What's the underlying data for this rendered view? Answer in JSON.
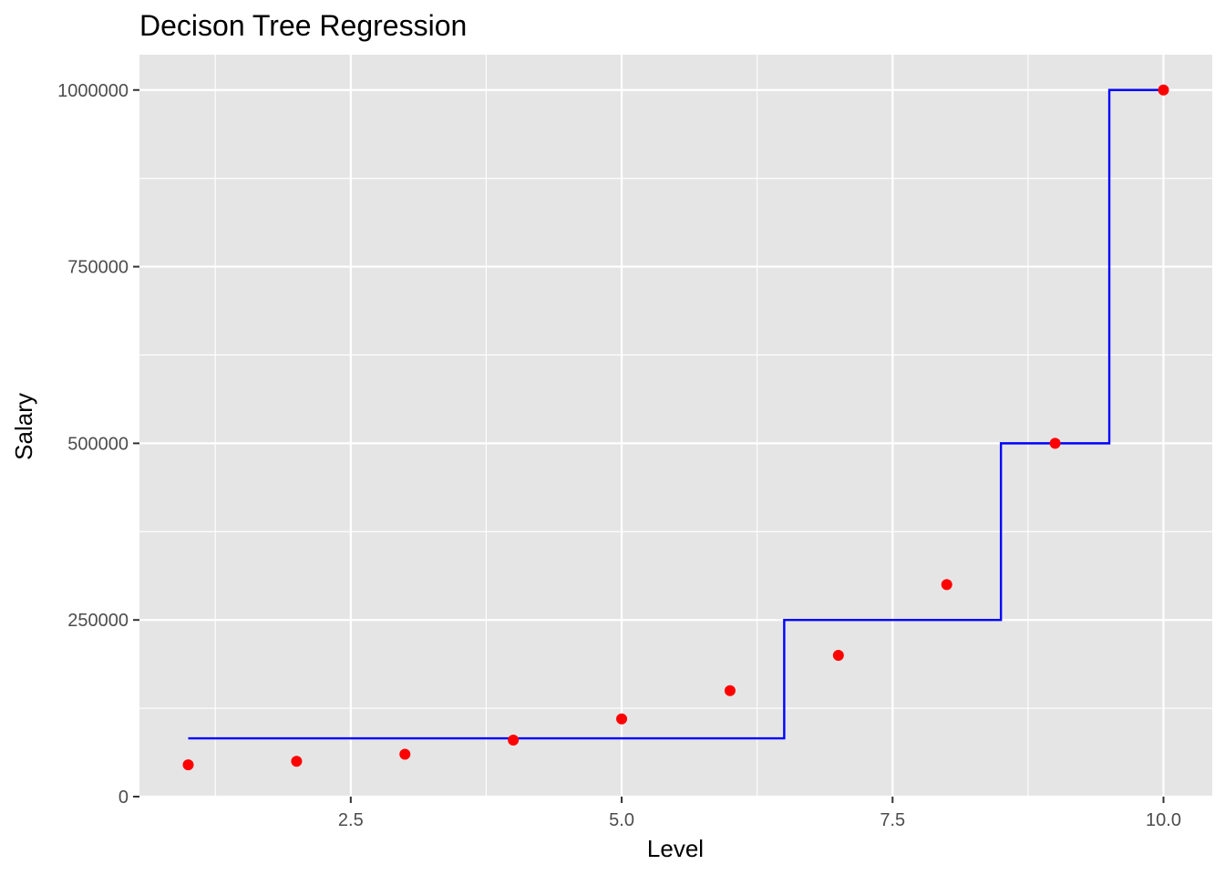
{
  "chart_data": {
    "type": "scatter",
    "title": "Decison Tree Regression",
    "xlabel": "Level",
    "ylabel": "Salary",
    "xlim": [
      0.55,
      10.45
    ],
    "ylim": [
      0,
      1050000
    ],
    "x_ticks": [
      2.5,
      5.0,
      7.5,
      10.0
    ],
    "x_tick_labels": [
      "2.5",
      "5.0",
      "7.5",
      "10.0"
    ],
    "y_ticks": [
      0,
      250000,
      500000,
      750000,
      1000000
    ],
    "y_tick_labels": [
      "0",
      "250000",
      "500000",
      "750000",
      "1000000"
    ],
    "grid": true,
    "background": "#e5e5e5",
    "grid_color": "#ffffff",
    "series": [
      {
        "kind": "points",
        "color": "#ff0000",
        "x": [
          1,
          2,
          3,
          4,
          5,
          6,
          7,
          8,
          9,
          10
        ],
        "y": [
          45000,
          50000,
          60000,
          80000,
          110000,
          150000,
          200000,
          300000,
          500000,
          1000000
        ]
      },
      {
        "kind": "step",
        "color": "#0000ff",
        "x": [
          1,
          6.5,
          6.5,
          8.5,
          8.5,
          9.5,
          9.5,
          10
        ],
        "y": [
          82500,
          82500,
          250000,
          250000,
          500000,
          500000,
          1000000,
          1000000
        ]
      }
    ]
  }
}
